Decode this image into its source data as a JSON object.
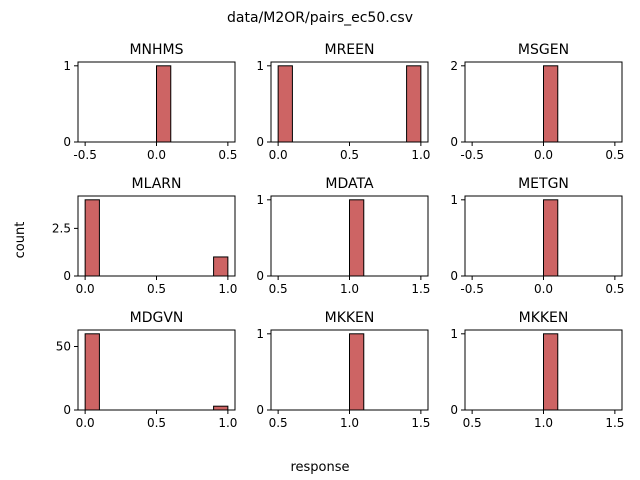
{
  "figure": {
    "title": "data/M2OR/pairs_ec50.csv",
    "xlabel": "response",
    "ylabel": "count",
    "bar_color": "#cd6464",
    "edge_color": "#000000"
  },
  "chart_data": [
    {
      "type": "bar",
      "title": "MNHMS",
      "xlim": [
        -0.55,
        0.55
      ],
      "ylim": [
        0,
        1.05
      ],
      "xticks": [
        -0.5,
        0.0,
        0.5
      ],
      "xtick_labels": [
        "-0.5",
        "0.0",
        "0.5"
      ],
      "yticks": [
        0,
        1
      ],
      "ytick_labels": [
        "0",
        "1"
      ],
      "bins": [
        {
          "x0": 0.0,
          "x1": 0.1,
          "count": 1
        }
      ]
    },
    {
      "type": "bar",
      "title": "MREEN",
      "xlim": [
        -0.05,
        1.05
      ],
      "ylim": [
        0,
        1.05
      ],
      "xticks": [
        0.0,
        0.5,
        1.0
      ],
      "xtick_labels": [
        "0.0",
        "0.5",
        "1.0"
      ],
      "yticks": [
        0,
        1
      ],
      "ytick_labels": [
        "0",
        "1"
      ],
      "bins": [
        {
          "x0": 0.0,
          "x1": 0.1,
          "count": 1
        },
        {
          "x0": 0.9,
          "x1": 1.0,
          "count": 1
        }
      ]
    },
    {
      "type": "bar",
      "title": "MSGEN",
      "xlim": [
        -0.55,
        0.55
      ],
      "ylim": [
        0,
        2.1
      ],
      "xticks": [
        -0.5,
        0.0,
        0.5
      ],
      "xtick_labels": [
        "-0.5",
        "0.0",
        "0.5"
      ],
      "yticks": [
        0,
        2
      ],
      "ytick_labels": [
        "0",
        "2"
      ],
      "bins": [
        {
          "x0": 0.0,
          "x1": 0.1,
          "count": 2
        }
      ]
    },
    {
      "type": "bar",
      "title": "MLARN",
      "xlim": [
        -0.05,
        1.05
      ],
      "ylim": [
        0,
        4.2
      ],
      "xticks": [
        0.0,
        0.5,
        1.0
      ],
      "xtick_labels": [
        "0.0",
        "0.5",
        "1.0"
      ],
      "yticks": [
        0,
        2.5
      ],
      "ytick_labels": [
        "0",
        "2.5"
      ],
      "bins": [
        {
          "x0": 0.0,
          "x1": 0.1,
          "count": 4
        },
        {
          "x0": 0.9,
          "x1": 1.0,
          "count": 1
        }
      ]
    },
    {
      "type": "bar",
      "title": "MDATA",
      "xlim": [
        0.45,
        1.55
      ],
      "ylim": [
        0,
        1.05
      ],
      "xticks": [
        0.5,
        1.0,
        1.5
      ],
      "xtick_labels": [
        "0.5",
        "1.0",
        "1.5"
      ],
      "yticks": [
        0,
        1
      ],
      "ytick_labels": [
        "0",
        "1"
      ],
      "bins": [
        {
          "x0": 1.0,
          "x1": 1.1,
          "count": 1
        }
      ]
    },
    {
      "type": "bar",
      "title": "METGN",
      "xlim": [
        -0.55,
        0.55
      ],
      "ylim": [
        0,
        1.05
      ],
      "xticks": [
        -0.5,
        0.0,
        0.5
      ],
      "xtick_labels": [
        "-0.5",
        "0.0",
        "0.5"
      ],
      "yticks": [
        0,
        1
      ],
      "ytick_labels": [
        "0",
        "1"
      ],
      "bins": [
        {
          "x0": 0.0,
          "x1": 0.1,
          "count": 1
        }
      ]
    },
    {
      "type": "bar",
      "title": "MDGVN",
      "xlim": [
        -0.05,
        1.05
      ],
      "ylim": [
        0,
        63
      ],
      "xticks": [
        0.0,
        0.5,
        1.0
      ],
      "xtick_labels": [
        "0.0",
        "0.5",
        "1.0"
      ],
      "yticks": [
        0,
        50
      ],
      "ytick_labels": [
        "0",
        "50"
      ],
      "bins": [
        {
          "x0": 0.0,
          "x1": 0.1,
          "count": 60
        },
        {
          "x0": 0.9,
          "x1": 1.0,
          "count": 3
        }
      ]
    },
    {
      "type": "bar",
      "title": "MKKEN",
      "xlim": [
        0.45,
        1.55
      ],
      "ylim": [
        0,
        1.05
      ],
      "xticks": [
        0.5,
        1.0,
        1.5
      ],
      "xtick_labels": [
        "0.5",
        "1.0",
        "1.5"
      ],
      "yticks": [
        0,
        1
      ],
      "ytick_labels": [
        "0",
        "1"
      ],
      "bins": [
        {
          "x0": 1.0,
          "x1": 1.1,
          "count": 1
        }
      ]
    },
    {
      "type": "bar",
      "title": "MKKEN",
      "xlim": [
        0.45,
        1.55
      ],
      "ylim": [
        0,
        1.05
      ],
      "xticks": [
        0.5,
        1.0,
        1.5
      ],
      "xtick_labels": [
        "0.5",
        "1.0",
        "1.5"
      ],
      "yticks": [
        0,
        1
      ],
      "ytick_labels": [
        "0",
        "1"
      ],
      "bins": [
        {
          "x0": 1.0,
          "x1": 1.1,
          "count": 1
        }
      ]
    }
  ]
}
